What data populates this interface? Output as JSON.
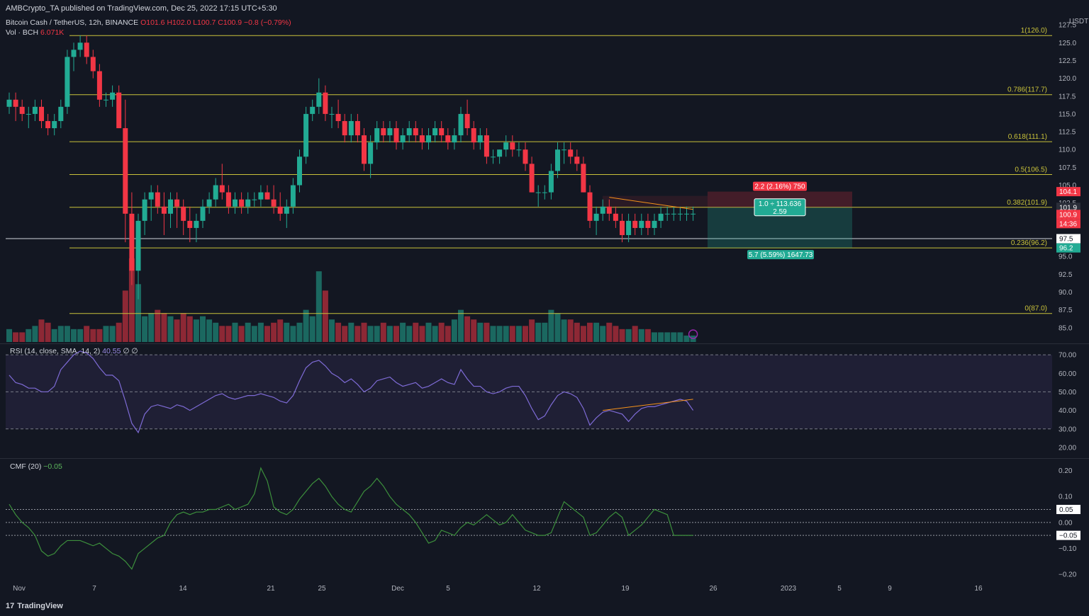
{
  "header": {
    "publisher": "AMBCrypto_TA published on TradingView.com, Dec 25, 2022 17:15 UTC+5:30"
  },
  "legend": {
    "symbol": "Bitcoin Cash / TetherUS, 12h, BINANCE",
    "open": "O101.6",
    "high": "H102.0",
    "low": "L100.7",
    "close": "C100.9",
    "change": "−0.8 (−0.79%)",
    "volume_label": "Vol · BCH",
    "volume_value": "6.071K",
    "rsi_label": "RSI (14, close, SMA, 14, 2)",
    "rsi_value": "40.55",
    "rsi_extra": "∅ ∅",
    "cmf_label": "CMF (20)",
    "cmf_value": "−0.05"
  },
  "branding": {
    "logo_text": "TradingView",
    "logo_mark": "17"
  },
  "colors": {
    "background": "#131722",
    "up": "#22ab94",
    "down": "#f23645",
    "fib": "#c9c23a",
    "rsi": "#7e6bd6",
    "cmf": "#3c8f3c",
    "divergence": "#f7931a"
  },
  "chart_data": [
    {
      "type": "candlestick",
      "title": "Bitcoin Cash / TetherUS, 12h, BINANCE",
      "y_unit": "USDT",
      "ylim": [
        83,
        129
      ],
      "yticks": [
        "127.5",
        "125.0",
        "122.5",
        "120.0",
        "117.5",
        "115.0",
        "112.5",
        "110.0",
        "107.5",
        "105.0",
        "102.5",
        "100.0",
        "97.5",
        "95.0",
        "92.5",
        "90.0",
        "87.5",
        "85.0"
      ],
      "x_ticks": [
        "Nov",
        "7",
        "14",
        "21",
        "25",
        "Dec",
        "5",
        "12",
        "19",
        "26",
        "2023",
        "5",
        "9",
        "16"
      ],
      "candles": [
        [
          116,
          118,
          115,
          117
        ],
        [
          117,
          118,
          114,
          116
        ],
        [
          116,
          117,
          114,
          115
        ],
        [
          115,
          116,
          113,
          115
        ],
        [
          115,
          117,
          114,
          116
        ],
        [
          116,
          117,
          113,
          114
        ],
        [
          114,
          115,
          112,
          113
        ],
        [
          113,
          115,
          112,
          114
        ],
        [
          114,
          117,
          113,
          116
        ],
        [
          116,
          124,
          115,
          123
        ],
        [
          123,
          125,
          121,
          124
        ],
        [
          124,
          126,
          123,
          125
        ],
        [
          125,
          126,
          122,
          123
        ],
        [
          123,
          124,
          120,
          121
        ],
        [
          121,
          122,
          116,
          117
        ],
        [
          117,
          118,
          116,
          117
        ],
        [
          117,
          119,
          116,
          118
        ],
        [
          118,
          119,
          113,
          113
        ],
        [
          113,
          117,
          97,
          101
        ],
        [
          101,
          104,
          91,
          93
        ],
        [
          93,
          101,
          89,
          100
        ],
        [
          100,
          104,
          98,
          103
        ],
        [
          103,
          105,
          100,
          104
        ],
        [
          104,
          105,
          101,
          102
        ],
        [
          102,
          104,
          98,
          101
        ],
        [
          101,
          104,
          99,
          103
        ],
        [
          103,
          104,
          99,
          102
        ],
        [
          102,
          103,
          98,
          100
        ],
        [
          100,
          102,
          97,
          99
        ],
        [
          99,
          101,
          97,
          100
        ],
        [
          100,
          103,
          99,
          102
        ],
        [
          102,
          104,
          101,
          103
        ],
        [
          103,
          106,
          102,
          105
        ],
        [
          105,
          108,
          103,
          104
        ],
        [
          104,
          105,
          101,
          102
        ],
        [
          102,
          104,
          101,
          103
        ],
        [
          103,
          104,
          101,
          102
        ],
        [
          102,
          104,
          101,
          103
        ],
        [
          103,
          104,
          102,
          103
        ],
        [
          103,
          105,
          102,
          104
        ],
        [
          104,
          105,
          103,
          103
        ],
        [
          103,
          105,
          101,
          102
        ],
        [
          102,
          104,
          100,
          101
        ],
        [
          101,
          103,
          99,
          102
        ],
        [
          102,
          106,
          101,
          105
        ],
        [
          105,
          110,
          104,
          109
        ],
        [
          109,
          116,
          108,
          115
        ],
        [
          115,
          117,
          114,
          116
        ],
        [
          116,
          120,
          115,
          118
        ],
        [
          118,
          119,
          114,
          115
        ],
        [
          115,
          116,
          113,
          115
        ],
        [
          115,
          117,
          113,
          114
        ],
        [
          114,
          115,
          111,
          112
        ],
        [
          112,
          115,
          111,
          114
        ],
        [
          114,
          115,
          111,
          112
        ],
        [
          112,
          113,
          107,
          108
        ],
        [
          108,
          112,
          106,
          111
        ],
        [
          111,
          114,
          110,
          113
        ],
        [
          113,
          114,
          111,
          112
        ],
        [
          112,
          114,
          111,
          113
        ],
        [
          113,
          114,
          110,
          111
        ],
        [
          111,
          113,
          110,
          112
        ],
        [
          112,
          114,
          111,
          113
        ],
        [
          113,
          114,
          111,
          112
        ],
        [
          112,
          113,
          110,
          111
        ],
        [
          111,
          113,
          110,
          112
        ],
        [
          112,
          114,
          111,
          113
        ],
        [
          113,
          114,
          111,
          112
        ],
        [
          112,
          113,
          110,
          111
        ],
        [
          111,
          113,
          110,
          112
        ],
        [
          112,
          116,
          111,
          115
        ],
        [
          115,
          117,
          112,
          113
        ],
        [
          113,
          114,
          110,
          111
        ],
        [
          111,
          113,
          110,
          112
        ],
        [
          112,
          113,
          108,
          109
        ],
        [
          109,
          110,
          108,
          109
        ],
        [
          109,
          110,
          108,
          110
        ],
        [
          110,
          112,
          109,
          111
        ],
        [
          111,
          112,
          109,
          110
        ],
        [
          110,
          111,
          109,
          110
        ],
        [
          110,
          111,
          107,
          108
        ],
        [
          108,
          109,
          104,
          104
        ],
        [
          104,
          105,
          102,
          104
        ],
        [
          104,
          105,
          103,
          104
        ],
        [
          104,
          108,
          103,
          107
        ],
        [
          107,
          111,
          106,
          110
        ],
        [
          110,
          111,
          108,
          110
        ],
        [
          110,
          111,
          108,
          109
        ],
        [
          109,
          110,
          107,
          108
        ],
        [
          108,
          109,
          104,
          104
        ],
        [
          104,
          105,
          99,
          100
        ],
        [
          100,
          102,
          98,
          101
        ],
        [
          101,
          103,
          100,
          102
        ],
        [
          102,
          103,
          100,
          101
        ],
        [
          101,
          102,
          99,
          100
        ],
        [
          100,
          101,
          97,
          98
        ],
        [
          98,
          101,
          97,
          100
        ],
        [
          100,
          101,
          98,
          99
        ],
        [
          99,
          101,
          98,
          100
        ],
        [
          100,
          101,
          98,
          99
        ],
        [
          99,
          101,
          98,
          100
        ],
        [
          100,
          102,
          99,
          101
        ],
        [
          101,
          102,
          100,
          101
        ],
        [
          101,
          102,
          100,
          101
        ],
        [
          101,
          102,
          100,
          101
        ],
        [
          101,
          102,
          100,
          101
        ],
        [
          101,
          102,
          100,
          101
        ]
      ],
      "volume_label": "Vol · BCH",
      "volume": [
        4,
        3,
        3,
        4,
        5,
        7,
        6,
        4,
        5,
        5,
        4,
        4,
        5,
        4,
        4,
        5,
        5,
        6,
        16,
        26,
        18,
        8,
        9,
        10,
        9,
        8,
        7,
        9,
        8,
        7,
        8,
        7,
        6,
        5,
        5,
        6,
        5,
        6,
        5,
        6,
        5,
        6,
        7,
        6,
        5,
        6,
        10,
        8,
        22,
        16,
        7,
        6,
        5,
        6,
        5,
        6,
        5,
        5,
        6,
        5,
        5,
        6,
        5,
        6,
        5,
        6,
        5,
        6,
        5,
        7,
        10,
        8,
        7,
        6,
        6,
        5,
        5,
        5,
        5,
        5,
        5,
        7,
        6,
        6,
        10,
        9,
        7,
        7,
        6,
        5,
        6,
        6,
        5,
        6,
        5,
        4,
        4,
        5,
        4,
        4,
        3,
        3,
        3,
        3,
        3,
        2,
        2
      ],
      "fib_levels": [
        {
          "label": "1(126.0)",
          "value": 126.0
        },
        {
          "label": "0.786(117.7)",
          "value": 117.7
        },
        {
          "label": "0.618(111.1)",
          "value": 111.1
        },
        {
          "label": "0.5(106.5)",
          "value": 106.5
        },
        {
          "label": "0.382(101.9)",
          "value": 101.9
        },
        {
          "label": "0.236(96.2)",
          "value": 96.2
        },
        {
          "label": "0(87.0)",
          "value": 87.0
        }
      ],
      "horizontal_line": {
        "value": 97.5
      },
      "position_tool": {
        "entry": 101.9,
        "stop": 104.1,
        "target": 96.2,
        "stop_label": "2.2 (2.16%) 750",
        "ratio_label_1": "1.0 ÷ 113.636",
        "ratio_label_2": "2.59",
        "target_label": "5.7 (5.59%) 1647.73"
      },
      "price_badges": [
        {
          "value": 104.1,
          "label": "104.1",
          "color": "#f23645"
        },
        {
          "value": 101.9,
          "label": "101.9",
          "color": "#2a2e39"
        },
        {
          "value": 100.9,
          "label": "100.9",
          "color": "#f23645"
        },
        {
          "label": "14:36",
          "color": "#f23645"
        },
        {
          "value": 97.5,
          "label": "97.5",
          "color": "#ffffff"
        },
        {
          "value": 96.2,
          "label": "96.2",
          "color": "#22ab94"
        }
      ]
    },
    {
      "type": "line",
      "title": "RSI (14, close, SMA, 14, 2)",
      "ylim": [
        15,
        75
      ],
      "yticks": [
        "70.00",
        "60.00",
        "50.00",
        "40.00",
        "30.00",
        "20.00"
      ],
      "band": [
        30,
        70
      ],
      "values": [
        59,
        55,
        54,
        52,
        52,
        50,
        50,
        53,
        62,
        66,
        70,
        72,
        71,
        68,
        63,
        59,
        59,
        56,
        45,
        33,
        28,
        38,
        42,
        43,
        42,
        41,
        43,
        42,
        40,
        42,
        44,
        46,
        48,
        49,
        47,
        46,
        47,
        48,
        48,
        49,
        48,
        47,
        45,
        44,
        48,
        56,
        63,
        66,
        67,
        64,
        60,
        58,
        55,
        57,
        54,
        50,
        52,
        56,
        57,
        58,
        55,
        53,
        54,
        55,
        52,
        53,
        55,
        57,
        55,
        54,
        62,
        57,
        53,
        53,
        50,
        49,
        50,
        52,
        53,
        53,
        48,
        41,
        35,
        37,
        43,
        48,
        50,
        49,
        47,
        41,
        32,
        36,
        39,
        40,
        39,
        38,
        34,
        38,
        41,
        42,
        42,
        43,
        44,
        45,
        46,
        45,
        40
      ]
    },
    {
      "type": "line",
      "title": "CMF (20)",
      "ylim": [
        -0.23,
        0.24
      ],
      "yticks": [
        "0.20",
        "0.10",
        "0.05",
        "0.00",
        "−0.05",
        "−0.10",
        "−0.20"
      ],
      "values": [
        0.07,
        0.03,
        0.0,
        -0.02,
        -0.05,
        -0.11,
        -0.13,
        -0.12,
        -0.09,
        -0.07,
        -0.07,
        -0.07,
        -0.08,
        -0.09,
        -0.08,
        -0.1,
        -0.12,
        -0.13,
        -0.15,
        -0.18,
        -0.12,
        -0.1,
        -0.08,
        -0.06,
        -0.05,
        0.0,
        0.03,
        0.04,
        0.03,
        0.04,
        0.04,
        0.05,
        0.05,
        0.06,
        0.07,
        0.05,
        0.06,
        0.07,
        0.11,
        0.21,
        0.16,
        0.06,
        0.04,
        0.03,
        0.05,
        0.09,
        0.12,
        0.15,
        0.17,
        0.14,
        0.1,
        0.07,
        0.05,
        0.04,
        0.08,
        0.12,
        0.14,
        0.17,
        0.14,
        0.1,
        0.07,
        0.05,
        0.03,
        0.0,
        -0.04,
        -0.08,
        -0.07,
        -0.03,
        -0.04,
        -0.05,
        -0.02,
        0.0,
        -0.01,
        0.01,
        0.03,
        0.01,
        -0.01,
        0.0,
        0.03,
        0.0,
        -0.03,
        -0.04,
        -0.05,
        -0.05,
        -0.04,
        0.02,
        0.08,
        0.06,
        0.04,
        0.02,
        -0.05,
        -0.04,
        -0.01,
        0.02,
        0.04,
        0.02,
        -0.05,
        -0.03,
        -0.01,
        0.02,
        0.05,
        0.04,
        0.03,
        -0.05,
        -0.05,
        -0.05,
        -0.05
      ]
    }
  ]
}
